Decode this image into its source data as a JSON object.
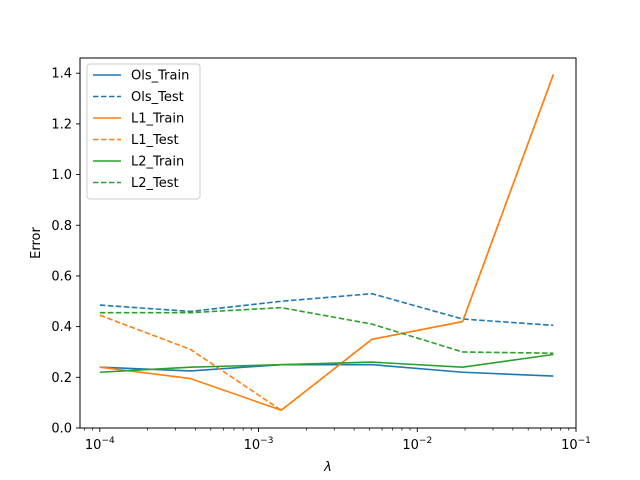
{
  "chart_data": {
    "type": "line",
    "xlabel": "λ",
    "ylabel": "Error",
    "xscale": "log",
    "xlim": [
      7.5e-05,
      0.1
    ],
    "ylim": [
      0,
      1.46
    ],
    "grid": false,
    "legend_position": "top-left",
    "x": [
      0.0001,
      0.000373,
      0.00139,
      0.00518,
      0.0193,
      0.072
    ],
    "x_ticks": [
      {
        "value": 0.0001,
        "base": "10",
        "exp": "−4"
      },
      {
        "value": 0.001,
        "base": "10",
        "exp": "−3"
      },
      {
        "value": 0.01,
        "base": "10",
        "exp": "−2"
      },
      {
        "value": 0.1,
        "base": "10",
        "exp": "−1"
      }
    ],
    "y_ticks": [
      {
        "value": 0.0,
        "label": "0.0"
      },
      {
        "value": 0.2,
        "label": "0.2"
      },
      {
        "value": 0.4,
        "label": "0.4"
      },
      {
        "value": 0.6,
        "label": "0.6"
      },
      {
        "value": 0.8,
        "label": "0.8"
      },
      {
        "value": 1.0,
        "label": "1.0"
      },
      {
        "value": 1.2,
        "label": "1.2"
      },
      {
        "value": 1.4,
        "label": "1.4"
      }
    ],
    "series": [
      {
        "name": "Ols_Train",
        "color": "#1f77b4",
        "style": "solid",
        "values": [
          0.24,
          0.225,
          0.25,
          0.25,
          0.22,
          0.205
        ]
      },
      {
        "name": "Ols_Test",
        "color": "#1f77b4",
        "style": "dashed",
        "values": [
          0.485,
          0.46,
          0.5,
          0.53,
          0.43,
          0.405
        ]
      },
      {
        "name": "L1_Train",
        "color": "#ff7f0e",
        "style": "solid",
        "values": [
          0.24,
          0.195,
          0.07,
          0.35,
          0.42,
          1.395
        ]
      },
      {
        "name": "L1_Test",
        "color": "#ff7f0e",
        "style": "dashed",
        "values": [
          0.445,
          0.31,
          0.07,
          0.35,
          0.42,
          1.395
        ]
      },
      {
        "name": "L2_Train",
        "color": "#2ca02c",
        "style": "solid",
        "values": [
          0.22,
          0.24,
          0.25,
          0.26,
          0.24,
          0.29
        ]
      },
      {
        "name": "L2_Test",
        "color": "#2ca02c",
        "style": "dashed",
        "values": [
          0.455,
          0.455,
          0.475,
          0.41,
          0.3,
          0.295
        ]
      }
    ]
  }
}
